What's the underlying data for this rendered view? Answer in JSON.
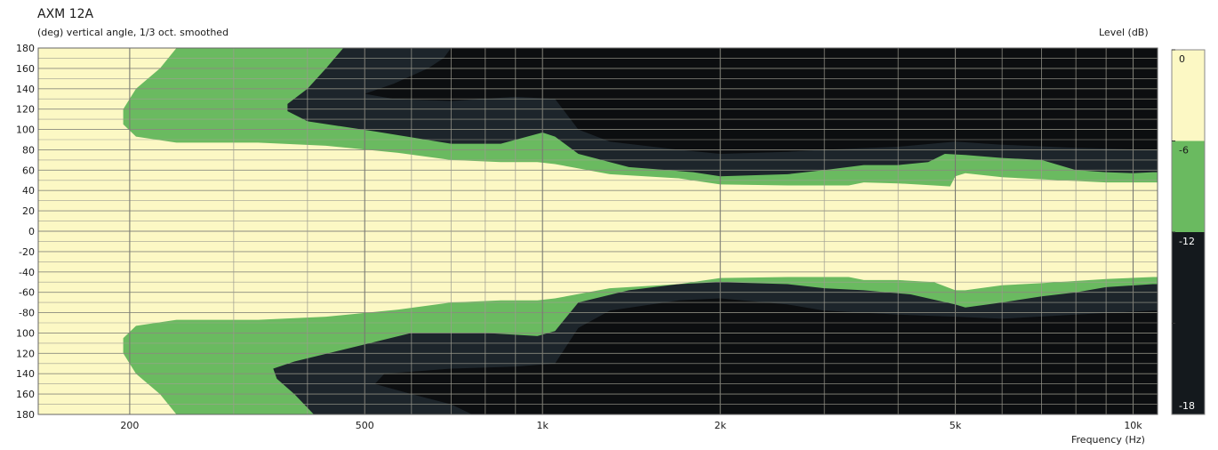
{
  "chart_data": {
    "type": "heatmap",
    "title": "AXM 12A",
    "subtitle": "(deg)  vertical angle, 1/3 oct. smoothed",
    "xlabel": "Frequency  (Hz)",
    "ylabel": "",
    "legend_title": "Level  (dB)",
    "x_scale": "log",
    "xlim": [
      140,
      11000
    ],
    "ylim": [
      -180,
      180
    ],
    "grid": true,
    "legend_placement": "right",
    "x_ticks": [
      {
        "value": 200,
        "label": "200"
      },
      {
        "value": 500,
        "label": "500"
      },
      {
        "value": 1000,
        "label": "1k"
      },
      {
        "value": 2000,
        "label": "2k"
      },
      {
        "value": 5000,
        "label": "5k"
      },
      {
        "value": 10000,
        "label": "10k"
      }
    ],
    "y_ticks": [
      {
        "value": 180,
        "label": "180"
      },
      {
        "value": 160,
        "label": "160"
      },
      {
        "value": 140,
        "label": "140"
      },
      {
        "value": 120,
        "label": "120"
      },
      {
        "value": 100,
        "label": "100"
      },
      {
        "value": 80,
        "label": "80"
      },
      {
        "value": 60,
        "label": "60"
      },
      {
        "value": 40,
        "label": "40"
      },
      {
        "value": 20,
        "label": "20"
      },
      {
        "value": 0,
        "label": "0"
      },
      {
        "value": -20,
        "label": "-20"
      },
      {
        "value": -40,
        "label": "-40"
      },
      {
        "value": -60,
        "label": "-60"
      },
      {
        "value": -80,
        "label": "-80"
      },
      {
        "value": -100,
        "label": "100"
      },
      {
        "value": -120,
        "label": "120"
      },
      {
        "value": -140,
        "label": "140"
      },
      {
        "value": -160,
        "label": "160"
      },
      {
        "value": -180,
        "label": "180"
      }
    ],
    "levels": [
      {
        "label": "0",
        "from_db": 0,
        "to_db": -6,
        "color": "#fcf8c4"
      },
      {
        "label": "-6",
        "from_db": -6,
        "to_db": -12,
        "color": "#6aba60"
      },
      {
        "label": "-12",
        "from_db": -12,
        "to_db": -18,
        "color": "#14191d"
      },
      {
        "label": "-18",
        "from_db": -18,
        "to_db": -24,
        "color": "#14191d"
      }
    ],
    "contour_colors": {
      "level_0": "#fcf8c4",
      "level_6": "#6aba60",
      "level_12": "#1d252b",
      "level_18": "#0c0e10"
    },
    "contours": [
      {
        "level_db": -6,
        "upper_edge": [
          [
            140,
            180
          ],
          [
            240,
            180
          ],
          [
            225,
            160
          ],
          [
            205,
            140
          ],
          [
            195,
            120
          ],
          [
            195,
            105
          ],
          [
            205,
            93
          ],
          [
            240,
            87
          ],
          [
            330,
            87
          ],
          [
            430,
            84
          ],
          [
            570,
            77
          ],
          [
            700,
            70
          ],
          [
            850,
            68
          ],
          [
            980,
            68
          ],
          [
            1050,
            66
          ],
          [
            1300,
            56
          ],
          [
            1700,
            52
          ],
          [
            2000,
            46
          ],
          [
            2600,
            45
          ],
          [
            3300,
            45
          ],
          [
            3500,
            48
          ],
          [
            4000,
            47
          ],
          [
            4600,
            45
          ],
          [
            4900,
            44
          ],
          [
            5000,
            54
          ],
          [
            5200,
            57
          ],
          [
            6000,
            53
          ],
          [
            7000,
            51
          ],
          [
            9000,
            48
          ],
          [
            10800,
            48
          ],
          [
            11000,
            48
          ]
        ],
        "lower_edge": [
          [
            140,
            -180
          ],
          [
            240,
            -180
          ],
          [
            225,
            -160
          ],
          [
            205,
            -140
          ],
          [
            195,
            -120
          ],
          [
            195,
            -105
          ],
          [
            205,
            -93
          ],
          [
            240,
            -87
          ],
          [
            330,
            -87
          ],
          [
            430,
            -84
          ],
          [
            570,
            -77
          ],
          [
            700,
            -70
          ],
          [
            850,
            -68
          ],
          [
            980,
            -68
          ],
          [
            1050,
            -66
          ],
          [
            1300,
            -56
          ],
          [
            1700,
            -52
          ],
          [
            2000,
            -46
          ],
          [
            2600,
            -45
          ],
          [
            3300,
            -45
          ],
          [
            3500,
            -48
          ],
          [
            4000,
            -48
          ],
          [
            4600,
            -50
          ],
          [
            5000,
            -58
          ],
          [
            5200,
            -58
          ],
          [
            6000,
            -53
          ],
          [
            7000,
            -51
          ],
          [
            9000,
            -47
          ],
          [
            10800,
            -45
          ],
          [
            11000,
            -45
          ]
        ]
      },
      {
        "level_db": -12,
        "upper_edge": [
          [
            140,
            180
          ],
          [
            460,
            180
          ],
          [
            430,
            160
          ],
          [
            400,
            140
          ],
          [
            370,
            125
          ],
          [
            370,
            118
          ],
          [
            400,
            108
          ],
          [
            520,
            98
          ],
          [
            700,
            86
          ],
          [
            850,
            86
          ],
          [
            1000,
            97
          ],
          [
            1050,
            93
          ],
          [
            1150,
            76
          ],
          [
            1400,
            63
          ],
          [
            1800,
            58
          ],
          [
            2000,
            54
          ],
          [
            2600,
            56
          ],
          [
            3000,
            60
          ],
          [
            3500,
            65
          ],
          [
            4000,
            65
          ],
          [
            4500,
            68
          ],
          [
            4800,
            76
          ],
          [
            5200,
            75
          ],
          [
            6000,
            72
          ],
          [
            7000,
            70
          ],
          [
            8000,
            60
          ],
          [
            9000,
            58
          ],
          [
            10000,
            57
          ],
          [
            10800,
            58
          ],
          [
            11000,
            58
          ]
        ],
        "lower_edge": [
          [
            140,
            -180
          ],
          [
            410,
            -180
          ],
          [
            380,
            -160
          ],
          [
            355,
            -145
          ],
          [
            350,
            -135
          ],
          [
            380,
            -128
          ],
          [
            470,
            -115
          ],
          [
            600,
            -100
          ],
          [
            800,
            -100
          ],
          [
            980,
            -103
          ],
          [
            1050,
            -98
          ],
          [
            1150,
            -70
          ],
          [
            1400,
            -58
          ],
          [
            1700,
            -52
          ],
          [
            2000,
            -50
          ],
          [
            2600,
            -52
          ],
          [
            3000,
            -56
          ],
          [
            3500,
            -58
          ],
          [
            4200,
            -62
          ],
          [
            5000,
            -72
          ],
          [
            5200,
            -75
          ],
          [
            6000,
            -70
          ],
          [
            7000,
            -64
          ],
          [
            8000,
            -60
          ],
          [
            9000,
            -55
          ],
          [
            10800,
            -52
          ],
          [
            11000,
            -52
          ]
        ]
      },
      {
        "level_db": -18,
        "upper_edge": [
          [
            140,
            180
          ],
          [
            700,
            180
          ],
          [
            680,
            170
          ],
          [
            640,
            160
          ],
          [
            560,
            145
          ],
          [
            500,
            135
          ],
          [
            560,
            130
          ],
          [
            700,
            128
          ],
          [
            900,
            132
          ],
          [
            1050,
            130
          ],
          [
            1150,
            100
          ],
          [
            1300,
            88
          ],
          [
            1700,
            80
          ],
          [
            2000,
            76
          ],
          [
            2600,
            78
          ],
          [
            3000,
            80
          ],
          [
            4000,
            83
          ],
          [
            5000,
            88
          ],
          [
            6000,
            85
          ],
          [
            8000,
            82
          ],
          [
            10800,
            80
          ],
          [
            11000,
            80
          ]
        ],
        "lower_edge": [
          [
            140,
            -180
          ],
          [
            760,
            -180
          ],
          [
            700,
            -170
          ],
          [
            600,
            -160
          ],
          [
            520,
            -150
          ],
          [
            540,
            -140
          ],
          [
            700,
            -135
          ],
          [
            900,
            -133
          ],
          [
            1050,
            -130
          ],
          [
            1150,
            -95
          ],
          [
            1300,
            -78
          ],
          [
            1700,
            -68
          ],
          [
            2000,
            -66
          ],
          [
            2600,
            -72
          ],
          [
            3000,
            -78
          ],
          [
            4000,
            -82
          ],
          [
            5000,
            -84
          ],
          [
            6000,
            -86
          ],
          [
            8000,
            -82
          ],
          [
            10800,
            -78
          ],
          [
            11000,
            -78
          ]
        ]
      }
    ]
  }
}
